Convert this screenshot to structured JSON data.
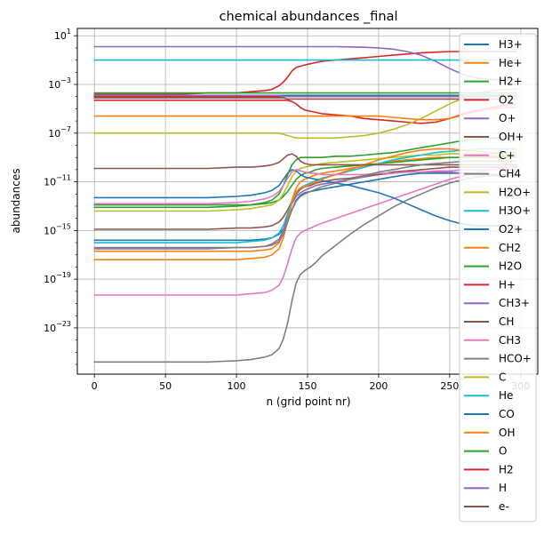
{
  "chart_data": {
    "type": "line",
    "title": "chemical abundances _final",
    "xlabel": "n (grid point nr)",
    "ylabel": "abundances",
    "xlim": [
      -12,
      312
    ],
    "ylim_log10": [
      -26.8,
      1.6
    ],
    "log_y": true,
    "grid": true,
    "legend_placement": "right, overlapping plot",
    "x_ticks": [
      0,
      50,
      100,
      150,
      200,
      250,
      300
    ],
    "x_tick_labels": [
      "0",
      "50",
      "100",
      "150",
      "200",
      "250",
      "300"
    ],
    "y_ticks_log10": [
      -23,
      -19,
      -15,
      -11,
      -7,
      -3,
      1
    ],
    "y_tick_labels": [
      {
        "base": "10",
        "exp": "−23"
      },
      {
        "base": "10",
        "exp": "−19"
      },
      {
        "base": "10",
        "exp": "−15"
      },
      {
        "base": "10",
        "exp": "−11"
      },
      {
        "base": "10",
        "exp": "−7"
      },
      {
        "base": "10",
        "exp": "−3"
      },
      {
        "base": "10",
        "exp": "1"
      }
    ],
    "x": [
      0,
      20,
      40,
      60,
      80,
      100,
      110,
      120,
      125,
      130,
      133,
      136,
      139,
      142,
      145,
      148,
      152,
      156,
      160,
      170,
      180,
      190,
      200,
      210,
      220,
      230,
      240,
      250,
      260,
      270,
      280,
      290,
      297
    ],
    "series": [
      {
        "name": "H3+",
        "color": "#1f77b4",
        "log10_values": [
          -15.8,
          -15.8,
          -15.8,
          -15.8,
          -15.8,
          -15.8,
          -15.8,
          -15.7,
          -15.6,
          -15.3,
          -14.9,
          -14.2,
          -13.3,
          -12.5,
          -12.1,
          -11.9,
          -11.8,
          -11.7,
          -11.6,
          -11.4,
          -11.2,
          -11.0,
          -10.8,
          -10.6,
          -10.4,
          -10.3,
          -10.3,
          -10.3,
          -10.3,
          -10.3,
          -10.4,
          -10.4,
          -10.4
        ]
      },
      {
        "name": "He+",
        "color": "#ff7f0e",
        "log10_values": [
          -16.7,
          -16.7,
          -16.7,
          -16.7,
          -16.7,
          -16.7,
          -16.7,
          -16.6,
          -16.5,
          -16.0,
          -15.2,
          -14.0,
          -12.5,
          -11.5,
          -11.0,
          -10.8,
          -10.6,
          -10.4,
          -10.3,
          -10.1,
          -9.9,
          -9.7,
          -9.5,
          -9.3,
          -9.2,
          -9.1,
          -9.0,
          -9.0,
          -9.0,
          -9.0,
          -9.0,
          -9.0,
          -9.0
        ]
      },
      {
        "name": "H2+",
        "color": "#2ca02c",
        "log10_values": [
          -12.9,
          -12.9,
          -12.9,
          -12.9,
          -12.9,
          -12.9,
          -12.9,
          -12.8,
          -12.7,
          -12.5,
          -12.2,
          -11.8,
          -11.3,
          -10.8,
          -10.5,
          -10.3,
          -10.2,
          -10.0,
          -9.9,
          -9.8,
          -9.7,
          -9.6,
          -9.5,
          -9.4,
          -9.3,
          -9.2,
          -9.1,
          -9.0,
          -9.0,
          -8.9,
          -8.9,
          -8.9,
          -8.9
        ]
      },
      {
        "name": "O2",
        "color": "#d62728",
        "log10_values": [
          -3.8,
          -3.8,
          -3.8,
          -3.8,
          -3.7,
          -3.7,
          -3.6,
          -3.5,
          -3.4,
          -3.1,
          -2.8,
          -2.4,
          -1.9,
          -1.6,
          -1.5,
          -1.4,
          -1.3,
          -1.2,
          -1.1,
          -1.0,
          -0.9,
          -0.8,
          -0.7,
          -0.6,
          -0.5,
          -0.4,
          -0.35,
          -0.3,
          -0.3,
          -0.3,
          -0.3,
          -0.3,
          -0.3
        ]
      },
      {
        "name": "O+",
        "color": "#9467bd",
        "log10_values": [
          -16.4,
          -16.4,
          -16.4,
          -16.4,
          -16.4,
          -16.4,
          -16.4,
          -16.3,
          -16.1,
          -15.7,
          -15.0,
          -13.8,
          -12.8,
          -12.2,
          -11.9,
          -11.7,
          -11.5,
          -11.3,
          -11.2,
          -11.0,
          -10.8,
          -10.6,
          -10.4,
          -10.3,
          -10.2,
          -10.2,
          -10.2,
          -10.2,
          -10.3,
          -10.3,
          -10.4,
          -10.4,
          -10.4
        ]
      },
      {
        "name": "OH+",
        "color": "#8c564b",
        "log10_values": [
          -14.9,
          -14.9,
          -14.9,
          -14.9,
          -14.9,
          -14.8,
          -14.8,
          -14.7,
          -14.6,
          -14.3,
          -13.9,
          -13.3,
          -12.6,
          -12.0,
          -11.6,
          -11.4,
          -11.3,
          -11.1,
          -11.0,
          -10.8,
          -10.7,
          -10.5,
          -10.4,
          -10.2,
          -10.1,
          -10.0,
          -9.9,
          -9.8,
          -9.8,
          -9.8,
          -9.8,
          -9.8,
          -9.8
        ]
      },
      {
        "name": "C+",
        "color": "#e377c2",
        "log10_values": [
          -20.3,
          -20.3,
          -20.3,
          -20.3,
          -20.3,
          -20.3,
          -20.2,
          -20.1,
          -19.9,
          -19.5,
          -18.8,
          -17.7,
          -16.5,
          -15.6,
          -15.2,
          -15.0,
          -14.8,
          -14.6,
          -14.4,
          -14.0,
          -13.6,
          -13.2,
          -12.8,
          -12.4,
          -12.0,
          -11.6,
          -11.2,
          -10.8,
          -10.5,
          -10.2,
          -10.0,
          -9.8,
          -9.7
        ]
      },
      {
        "name": "CH4",
        "color": "#7f7f7f",
        "log10_values": [
          -25.8,
          -25.8,
          -25.8,
          -25.8,
          -25.8,
          -25.7,
          -25.6,
          -25.4,
          -25.2,
          -24.7,
          -23.9,
          -22.6,
          -20.8,
          -19.3,
          -18.6,
          -18.3,
          -18.0,
          -17.6,
          -17.1,
          -16.2,
          -15.3,
          -14.5,
          -13.8,
          -13.1,
          -12.5,
          -12.0,
          -11.5,
          -11.1,
          -10.8,
          -10.6,
          -10.5,
          -10.5,
          -10.5
        ]
      },
      {
        "name": "H2O+",
        "color": "#bcbd22",
        "log10_values": [
          -13.4,
          -13.4,
          -13.4,
          -13.4,
          -13.4,
          -13.3,
          -13.2,
          -13.0,
          -12.9,
          -12.5,
          -12.0,
          -11.3,
          -10.6,
          -10.1,
          -9.9,
          -9.8,
          -9.7,
          -9.6,
          -9.5,
          -9.4,
          -9.3,
          -9.2,
          -9.1,
          -9.0,
          -8.9,
          -8.8,
          -8.8,
          -8.7,
          -8.7,
          -8.7,
          -8.7,
          -8.7,
          -8.7
        ]
      },
      {
        "name": "H3O+",
        "color": "#17becf",
        "log10_values": [
          -16.0,
          -16.0,
          -16.0,
          -16.0,
          -16.0,
          -16.0,
          -15.9,
          -15.8,
          -15.6,
          -15.2,
          -14.6,
          -13.6,
          -12.6,
          -11.9,
          -11.5,
          -11.3,
          -11.1,
          -10.9,
          -10.7,
          -10.4,
          -10.1,
          -9.8,
          -9.5,
          -9.2,
          -9.0,
          -8.8,
          -8.6,
          -8.5,
          -8.4,
          -8.3,
          -8.3,
          -8.3,
          -8.3
        ]
      },
      {
        "name": "O2+",
        "color": "#1f77b4",
        "log10_values": [
          -12.3,
          -12.3,
          -12.3,
          -12.3,
          -12.3,
          -12.2,
          -12.1,
          -11.9,
          -11.7,
          -11.3,
          -10.8,
          -10.3,
          -10.0,
          -10.1,
          -10.4,
          -10.6,
          -10.7,
          -10.8,
          -10.9,
          -11.1,
          -11.3,
          -11.6,
          -11.9,
          -12.3,
          -12.8,
          -13.3,
          -13.8,
          -14.2,
          -14.5,
          -14.6,
          -14.6,
          -14.6,
          -14.6
        ]
      },
      {
        "name": "CH2",
        "color": "#ff7f0e",
        "log10_values": [
          -17.4,
          -17.4,
          -17.4,
          -17.4,
          -17.4,
          -17.4,
          -17.3,
          -17.2,
          -17.0,
          -16.5,
          -15.6,
          -14.2,
          -12.7,
          -11.8,
          -11.5,
          -11.4,
          -11.2,
          -11.0,
          -10.8,
          -10.4,
          -10.0,
          -9.6,
          -9.2,
          -8.9,
          -8.6,
          -8.4,
          -8.3,
          -8.3,
          -8.4,
          -8.5,
          -8.6,
          -8.6,
          -8.6
        ]
      },
      {
        "name": "H2O",
        "color": "#2ca02c",
        "log10_values": [
          -13.1,
          -13.1,
          -13.1,
          -13.1,
          -13.1,
          -13.0,
          -12.9,
          -12.7,
          -12.5,
          -12.0,
          -11.3,
          -10.4,
          -9.6,
          -9.2,
          -9.0,
          -9.0,
          -9.0,
          -9.0,
          -9.0,
          -8.9,
          -8.9,
          -8.8,
          -8.7,
          -8.6,
          -8.4,
          -8.2,
          -8.0,
          -7.8,
          -7.6,
          -7.5,
          -7.4,
          -7.4,
          -7.4
        ]
      },
      {
        "name": "H+",
        "color": "#d62728",
        "log10_values": [
          -4.3,
          -4.3,
          -4.3,
          -4.3,
          -4.3,
          -4.3,
          -4.3,
          -4.3,
          -4.3,
          -4.3,
          -4.3,
          -4.3,
          -4.4,
          -4.6,
          -4.9,
          -5.1,
          -5.2,
          -5.3,
          -5.4,
          -5.5,
          -5.6,
          -5.8,
          -5.9,
          -6.0,
          -6.1,
          -6.2,
          -6.1,
          -5.8,
          -5.4,
          -5.1,
          -4.9,
          -4.7,
          -4.6
        ]
      },
      {
        "name": "CH3+",
        "color": "#9467bd",
        "log10_values": [
          0.1,
          0.1,
          0.1,
          0.1,
          0.1,
          0.1,
          0.1,
          0.1,
          0.1,
          0.1,
          0.1,
          0.1,
          0.1,
          0.1,
          0.1,
          0.1,
          0.1,
          0.1,
          0.1,
          0.1,
          0.08,
          0.05,
          0.0,
          -0.1,
          -0.3,
          -0.6,
          -1.1,
          -1.7,
          -2.2,
          -2.5,
          -2.6,
          -2.6,
          -2.6
        ]
      },
      {
        "name": "CH",
        "color": "#8c564b",
        "log10_values": [
          -9.9,
          -9.9,
          -9.9,
          -9.9,
          -9.9,
          -9.8,
          -9.8,
          -9.7,
          -9.6,
          -9.4,
          -9.1,
          -8.8,
          -8.7,
          -8.9,
          -9.3,
          -9.5,
          -9.6,
          -9.6,
          -9.6,
          -9.6,
          -9.6,
          -9.6,
          -9.6,
          -9.6,
          -9.6,
          -9.6,
          -9.6,
          -9.6,
          -9.6,
          -9.6,
          -9.6,
          -9.6,
          -9.6
        ]
      },
      {
        "name": "CH3",
        "color": "#e377c2",
        "log10_values": [
          -12.8,
          -12.8,
          -12.8,
          -12.8,
          -12.8,
          -12.7,
          -12.6,
          -12.4,
          -12.2,
          -11.8,
          -11.3,
          -10.7,
          -10.2,
          -10.0,
          -10.1,
          -10.2,
          -10.3,
          -10.3,
          -10.4,
          -10.4,
          -10.4,
          -10.4,
          -10.3,
          -10.3,
          -10.2,
          -10.2,
          -10.1,
          -10.1,
          -10.0,
          -10.0,
          -10.0,
          -10.0,
          -10.0
        ]
      },
      {
        "name": "HCO+",
        "color": "#7f7f7f",
        "log10_values": [
          -16.5,
          -16.5,
          -16.5,
          -16.5,
          -16.5,
          -16.4,
          -16.4,
          -16.3,
          -16.2,
          -15.9,
          -15.3,
          -14.3,
          -13.3,
          -12.6,
          -12.2,
          -12.0,
          -11.8,
          -11.6,
          -11.4,
          -11.1,
          -10.8,
          -10.5,
          -10.2,
          -10.0,
          -9.8,
          -9.6,
          -9.5,
          -9.4,
          -9.3,
          -9.3,
          -9.3,
          -9.3,
          -9.3
        ]
      },
      {
        "name": "C",
        "color": "#bcbd22",
        "log10_values": [
          -7.0,
          -7.0,
          -7.0,
          -7.0,
          -7.0,
          -7.0,
          -7.0,
          -7.0,
          -7.0,
          -7.0,
          -7.1,
          -7.2,
          -7.3,
          -7.4,
          -7.4,
          -7.4,
          -7.4,
          -7.4,
          -7.4,
          -7.4,
          -7.3,
          -7.2,
          -7.0,
          -6.7,
          -6.3,
          -5.8,
          -5.2,
          -4.6,
          -4.1,
          -3.7,
          -3.5,
          -3.4,
          -3.4
        ]
      },
      {
        "name": "He",
        "color": "#17becf",
        "log10_values": [
          -1.0,
          -1.0,
          -1.0,
          -1.0,
          -1.0,
          -1.0,
          -1.0,
          -1.0,
          -1.0,
          -1.0,
          -1.0,
          -1.0,
          -1.0,
          -1.0,
          -1.0,
          -1.0,
          -1.0,
          -1.0,
          -1.0,
          -1.0,
          -1.0,
          -1.0,
          -1.0,
          -1.0,
          -1.0,
          -1.0,
          -1.0,
          -1.0,
          -1.0,
          -1.0,
          -1.0,
          -1.0,
          -1.0
        ]
      },
      {
        "name": "CO",
        "color": "#1f77b4",
        "log10_values": [
          -3.9,
          -3.9,
          -3.9,
          -3.9,
          -3.9,
          -3.9,
          -3.9,
          -3.9,
          -3.9,
          -3.9,
          -3.9,
          -3.9,
          -3.9,
          -3.9,
          -3.9,
          -3.9,
          -3.9,
          -3.9,
          -3.9,
          -3.9,
          -3.9,
          -3.9,
          -3.9,
          -3.9,
          -3.9,
          -3.9,
          -3.9,
          -3.9,
          -3.9,
          -3.9,
          -3.9,
          -3.9,
          -3.9
        ]
      },
      {
        "name": "OH",
        "color": "#ff7f0e",
        "log10_values": [
          -5.6,
          -5.6,
          -5.6,
          -5.6,
          -5.6,
          -5.6,
          -5.6,
          -5.6,
          -5.6,
          -5.6,
          -5.6,
          -5.6,
          -5.6,
          -5.6,
          -5.6,
          -5.6,
          -5.6,
          -5.6,
          -5.6,
          -5.6,
          -5.6,
          -5.6,
          -5.6,
          -5.7,
          -5.8,
          -5.9,
          -5.9,
          -5.8,
          -5.5,
          -5.2,
          -5.0,
          -4.9,
          -4.9
        ]
      },
      {
        "name": "O",
        "color": "#2ca02c",
        "log10_values": [
          -3.7,
          -3.7,
          -3.7,
          -3.7,
          -3.7,
          -3.7,
          -3.7,
          -3.7,
          -3.7,
          -3.7,
          -3.7,
          -3.7,
          -3.7,
          -3.7,
          -3.7,
          -3.7,
          -3.7,
          -3.7,
          -3.7,
          -3.7,
          -3.7,
          -3.7,
          -3.7,
          -3.7,
          -3.7,
          -3.7,
          -3.7,
          -3.7,
          -3.7,
          -3.7,
          -3.7,
          -3.7,
          -3.7
        ]
      },
      {
        "name": "H2",
        "color": "#d62728",
        "log10_values": [
          -4.0,
          -4.0,
          -4.0,
          -4.0,
          -4.0,
          -4.0,
          -4.0,
          -4.0,
          -4.0,
          -4.0,
          -4.0,
          -4.0,
          -4.0,
          -4.0,
          -4.0,
          -4.0,
          -4.0,
          -4.0,
          -4.0,
          -4.0,
          -4.0,
          -4.0,
          -4.0,
          -4.0,
          -4.0,
          -4.0,
          -4.0,
          -4.0,
          -4.0,
          -4.0,
          -4.0,
          -4.0,
          -4.0
        ]
      },
      {
        "name": "H",
        "color": "#9467bd",
        "log10_values": [
          -3.9,
          -3.9,
          -3.9,
          -3.9,
          -3.9,
          -3.9,
          -3.9,
          -3.9,
          -3.9,
          -3.9,
          -4.0,
          -4.0,
          -4.0,
          -4.0,
          -4.0,
          -4.0,
          -4.0,
          -4.0,
          -4.0,
          -4.0,
          -4.0,
          -4.0,
          -4.0,
          -4.0,
          -4.0,
          -4.0,
          -4.0,
          -4.0,
          -4.0,
          -4.0,
          -4.0,
          -4.0,
          -4.0
        ]
      },
      {
        "name": "e-",
        "color": "#8c564b",
        "log10_values": [
          -4.1,
          -4.1,
          -4.1,
          -4.1,
          -4.1,
          -4.1,
          -4.1,
          -4.1,
          -4.1,
          -4.1,
          -4.1,
          -4.2,
          -4.2,
          -4.2,
          -4.2,
          -4.2,
          -4.2,
          -4.2,
          -4.2,
          -4.2,
          -4.2,
          -4.2,
          -4.2,
          -4.2,
          -4.2,
          -4.2,
          -4.2,
          -4.2,
          -4.2,
          -4.2,
          -4.2,
          -4.2,
          -4.2
        ]
      }
    ]
  }
}
